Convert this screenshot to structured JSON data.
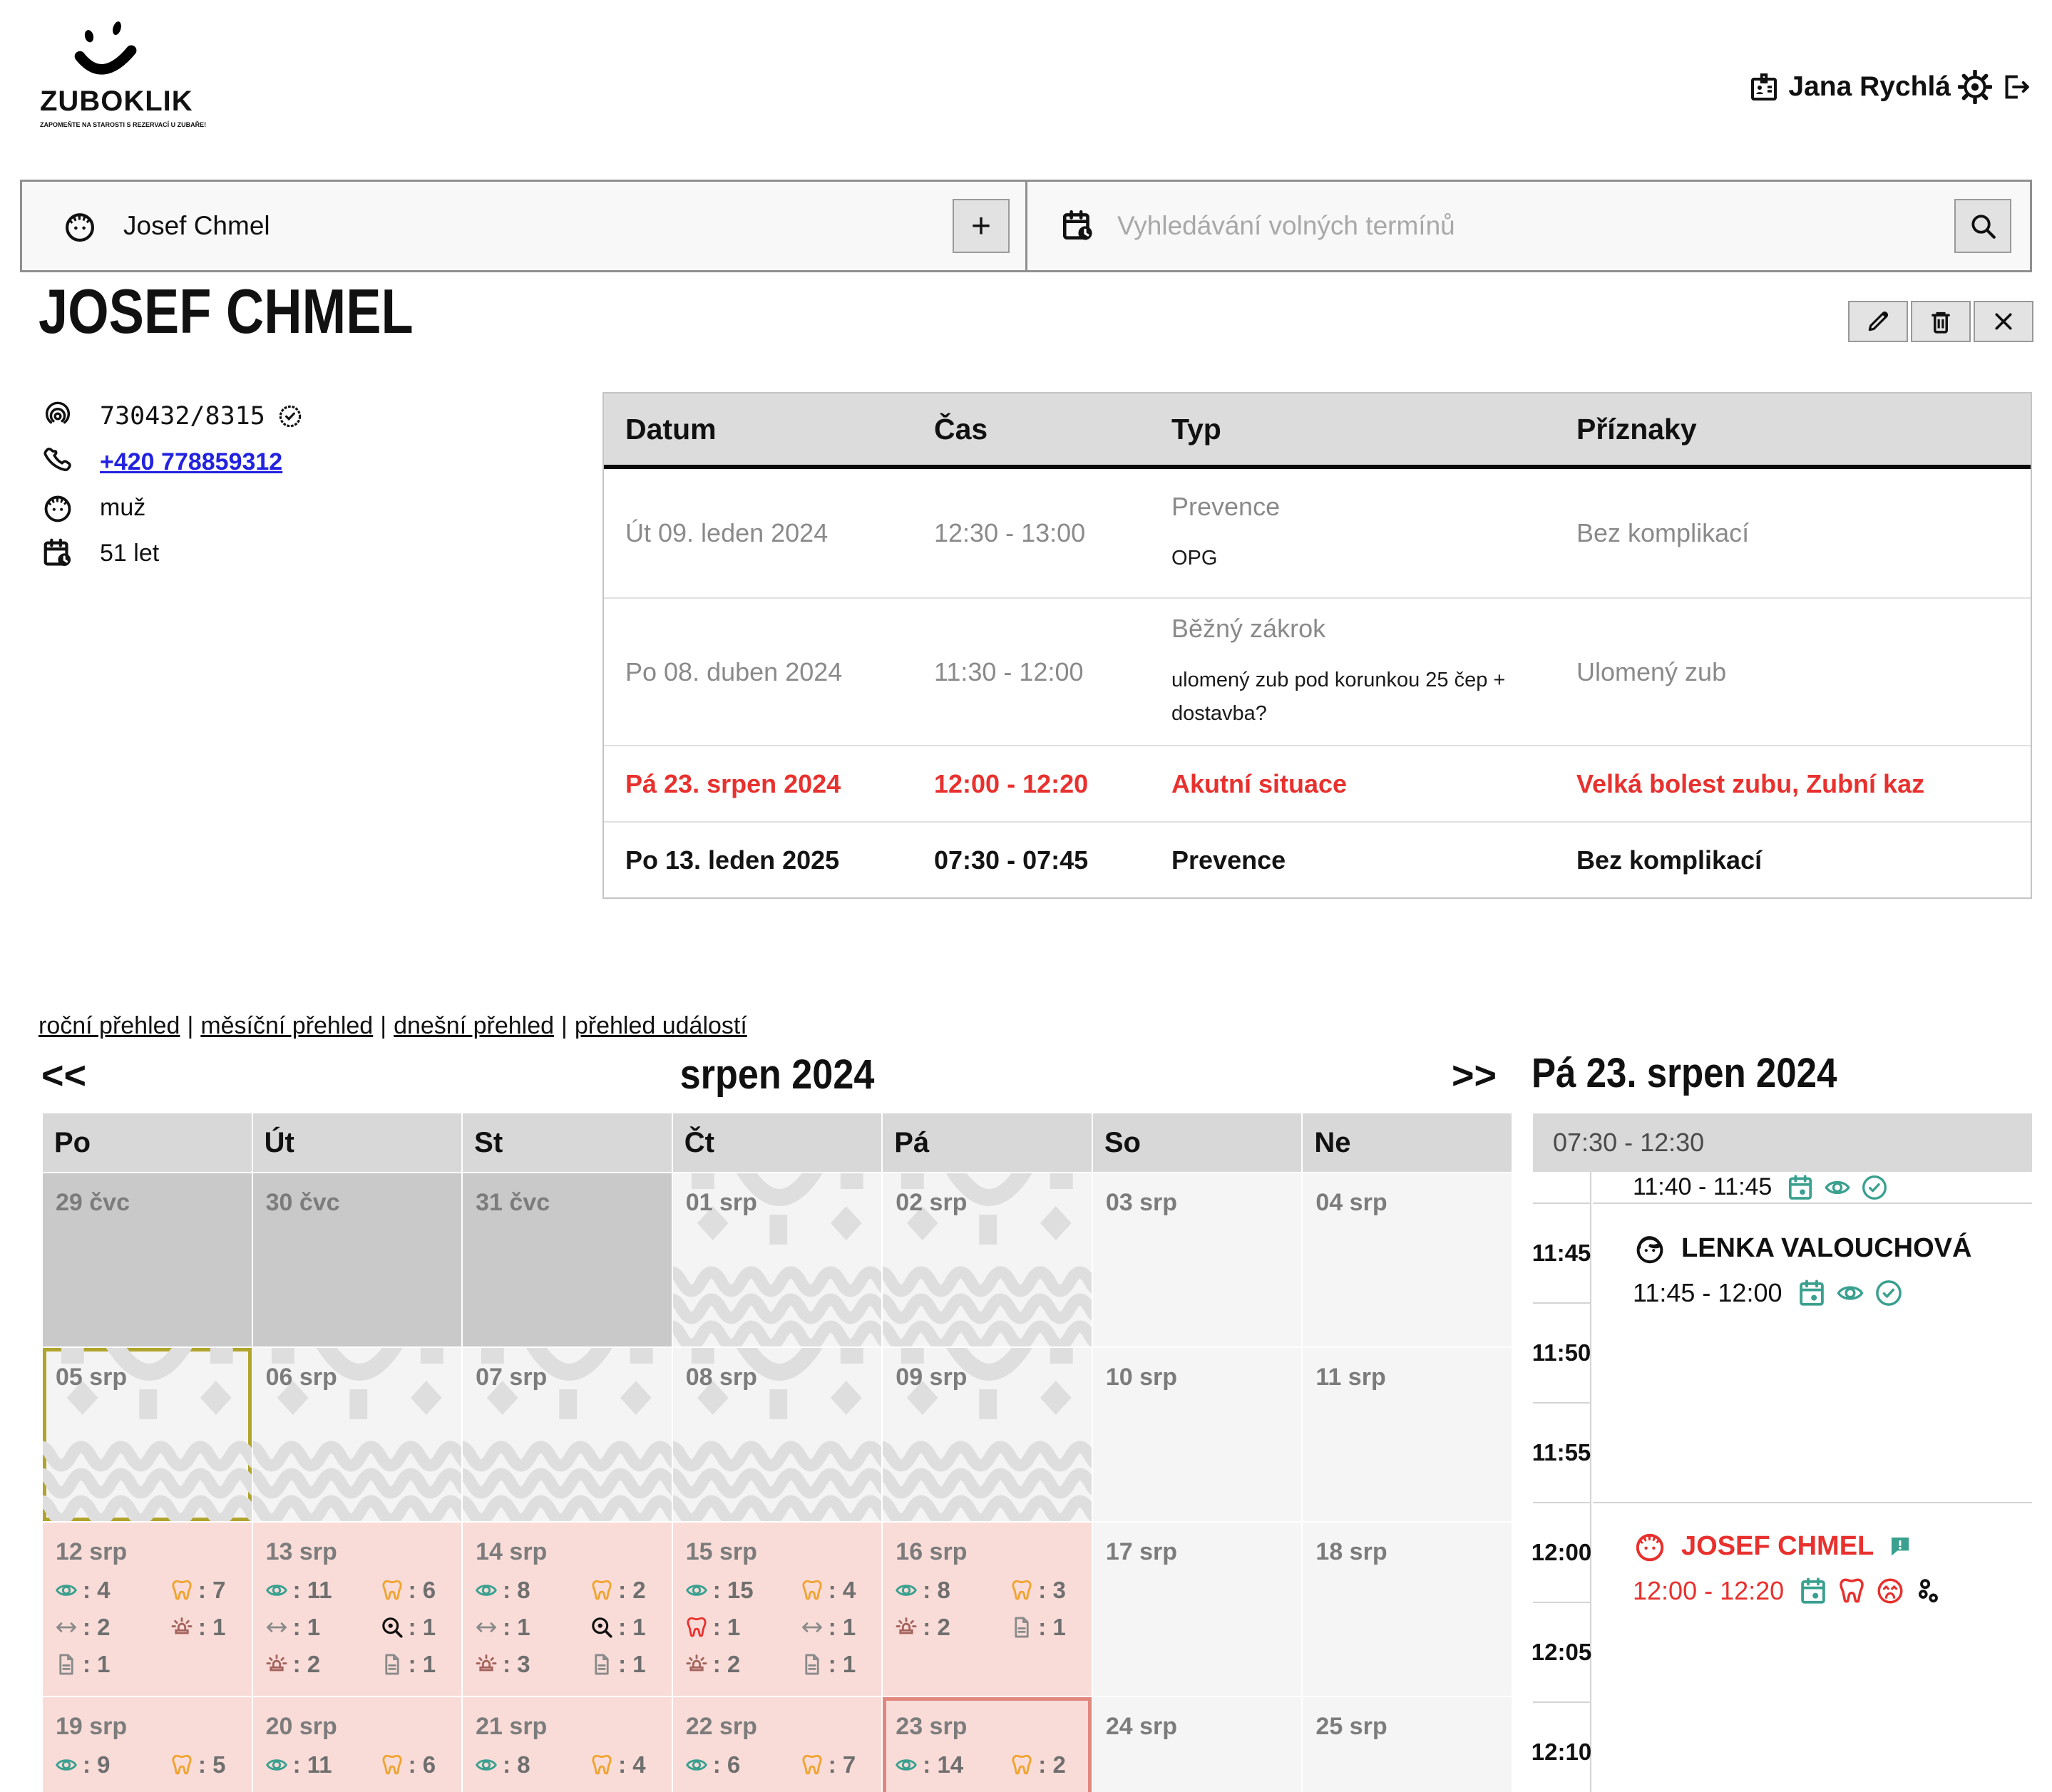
{
  "brand": {
    "name": "ZUBOKLIK",
    "tagline": "ZAPOMEŇTE NA STAROSTI S REZERVACÍ U ZUBAŘE!"
  },
  "topbar": {
    "user_name": "Jana Rychlá",
    "user_icon": "idbadge",
    "settings_icon": "gear",
    "logout_icon": "logout"
  },
  "search": {
    "patient_value": "Josef Chmel",
    "patient_icon": "face-male",
    "add_button_label": "+",
    "slots_placeholder": "Vyhledávání volných termínů",
    "slots_icon": "calclock",
    "submit_icon": "search"
  },
  "patient": {
    "name": "JOSEF CHMEL",
    "details": [
      {
        "icon": "fingerprint",
        "value": "730432/8315",
        "badge_icon": "badge"
      },
      {
        "icon": "phone",
        "value": "+420 778859312",
        "link": true
      },
      {
        "icon": "face-male",
        "value": "muž"
      },
      {
        "icon": "calclock",
        "value": "51 let"
      }
    ],
    "actions": [
      {
        "icon": "pencil",
        "name": "edit"
      },
      {
        "icon": "trash",
        "name": "delete"
      },
      {
        "icon": "close",
        "name": "close"
      }
    ]
  },
  "visits": {
    "columns": [
      "Datum",
      "Čas",
      "Typ",
      "Příznaky"
    ],
    "rows": [
      {
        "datum": "Út 09. leden 2024",
        "cas": "12:30 - 13:00",
        "typ": "Prevence",
        "note": "OPG",
        "priznaky": "Bez komplikací",
        "status": "past"
      },
      {
        "datum": "Po 08. duben 2024",
        "cas": "11:30 - 12:00",
        "typ": "Běžný zákrok",
        "note": "ulomený zub pod korunkou 25 čep + dostavba?",
        "priznaky": "Ulomený zub",
        "status": "past"
      },
      {
        "datum": "Pá 23. srpen 2024",
        "cas": "12:00 - 12:20",
        "typ": "Akutní situace",
        "note": "",
        "priznaky": "Velká bolest zubu, Zubní kaz",
        "status": "urgent"
      },
      {
        "datum": "Po 13. leden 2025",
        "cas": "07:30 - 07:45",
        "typ": "Prevence",
        "note": "",
        "priznaky": "Bez komplikací",
        "status": "upcoming"
      }
    ]
  },
  "overview_links": {
    "yearly": "roční přehled",
    "monthly": "měsíční přehled",
    "daily": "dnešní přehled",
    "events": "přehled událostí",
    "separator": "|"
  },
  "calendar": {
    "prev_label": "<<",
    "next_label": ">>",
    "month_title": "srpen 2024",
    "weekdays": [
      "Po",
      "Út",
      "St",
      "Čt",
      "Pá",
      "So",
      "Ne"
    ],
    "weeks": [
      [
        {
          "label": "29 čvc",
          "type": "prev"
        },
        {
          "label": "30 čvc",
          "type": "prev"
        },
        {
          "label": "31 čvc",
          "type": "prev"
        },
        {
          "label": "01 srp",
          "type": "vacation"
        },
        {
          "label": "02 srp",
          "type": "vacation"
        },
        {
          "label": "03 srp",
          "type": "plain"
        },
        {
          "label": "04 srp",
          "type": "plain"
        }
      ],
      [
        {
          "label": "05 srp",
          "type": "vacation",
          "highlight": "olive"
        },
        {
          "label": "06 srp",
          "type": "vacation"
        },
        {
          "label": "07 srp",
          "type": "vacation"
        },
        {
          "label": "08 srp",
          "type": "vacation"
        },
        {
          "label": "09 srp",
          "type": "vacation"
        },
        {
          "label": "10 srp",
          "type": "plain"
        },
        {
          "label": "11 srp",
          "type": "plain"
        }
      ],
      [
        {
          "label": "12 srp",
          "type": "stats",
          "stats": [
            [
              "eye",
              4
            ],
            [
              "tooth",
              7
            ],
            [
              "arrows",
              2
            ],
            [
              "siren",
              1
            ],
            [
              "doc",
              1
            ]
          ]
        },
        {
          "label": "13 srp",
          "type": "stats",
          "stats": [
            [
              "eye",
              11
            ],
            [
              "tooth",
              6
            ],
            [
              "arrows",
              1
            ],
            [
              "opg",
              1
            ],
            [
              "siren",
              2
            ],
            [
              "doc",
              1
            ]
          ]
        },
        {
          "label": "14 srp",
          "type": "stats",
          "stats": [
            [
              "eye",
              8
            ],
            [
              "tooth",
              2
            ],
            [
              "arrows",
              1
            ],
            [
              "opg",
              1
            ],
            [
              "siren",
              3
            ],
            [
              "doc",
              1
            ]
          ]
        },
        {
          "label": "15 srp",
          "type": "stats",
          "stats": [
            [
              "eye",
              15
            ],
            [
              "tooth",
              4
            ],
            [
              "tooth-red",
              1
            ],
            [
              "arrows",
              1
            ],
            [
              "siren",
              2
            ],
            [
              "doc",
              1
            ]
          ]
        },
        {
          "label": "16 srp",
          "type": "stats",
          "stats": [
            [
              "eye",
              8
            ],
            [
              "tooth",
              3
            ],
            [
              "siren",
              2
            ],
            [
              "doc",
              1
            ]
          ]
        },
        {
          "label": "17 srp",
          "type": "plain"
        },
        {
          "label": "18 srp",
          "type": "plain"
        }
      ],
      [
        {
          "label": "19 srp",
          "type": "stats",
          "stats": [
            [
              "eye",
              9
            ],
            [
              "tooth",
              5
            ]
          ]
        },
        {
          "label": "20 srp",
          "type": "stats",
          "stats": [
            [
              "eye",
              11
            ],
            [
              "tooth",
              6
            ]
          ]
        },
        {
          "label": "21 srp",
          "type": "stats",
          "stats": [
            [
              "eye",
              8
            ],
            [
              "tooth",
              4
            ]
          ]
        },
        {
          "label": "22 srp",
          "type": "stats",
          "stats": [
            [
              "eye",
              6
            ],
            [
              "tooth",
              7
            ]
          ]
        },
        {
          "label": "23 srp",
          "type": "stats",
          "highlight": "salmon",
          "stats": [
            [
              "eye",
              14
            ],
            [
              "tooth",
              2
            ]
          ]
        },
        {
          "label": "24 srp",
          "type": "plain"
        },
        {
          "label": "25 srp",
          "type": "plain"
        }
      ]
    ]
  },
  "day_panel": {
    "title": "Pá 23. srpen 2024",
    "range_header": "07:30 - 12:30",
    "time_labels": [
      "11:45",
      "11:50",
      "11:55",
      "12:00",
      "12:05",
      "12:10"
    ],
    "appointments": [
      {
        "name": "",
        "time": "11:40 - 11:45",
        "icons": [
          "calendar",
          "eye",
          "check"
        ]
      },
      {
        "name": "LENKA VALOUCHOVÁ",
        "time": "11:45 - 12:00",
        "face_icon": "face-female",
        "icons": [
          "calendar",
          "eye",
          "check"
        ]
      },
      {
        "name": "JOSEF CHMEL",
        "time": "12:00 - 12:20",
        "face_icon": "face-male-red",
        "note_icon": "bubble",
        "icons": [
          "calendar",
          "tooth-red",
          "pain",
          "dots"
        ]
      }
    ]
  },
  "colors": {
    "teal": "#3AA08F",
    "orange": "#F0A32F",
    "red": "#E8312E",
    "pink_cell": "#F9DCD8",
    "salmon_border": "#E0887E",
    "olive_border": "#B0A42C",
    "link_blue": "#2222E0",
    "muted_gray": "#8A8A8A",
    "siren_brown": "#A4625C"
  }
}
